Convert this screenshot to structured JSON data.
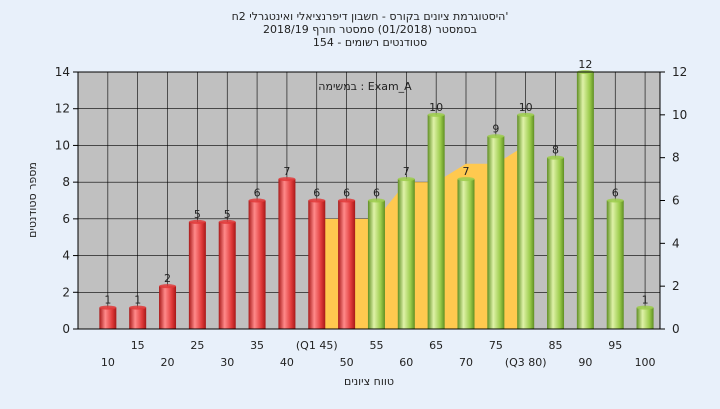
{
  "chart_data": {
    "type": "bar",
    "title_lines": [
      "היסטוגרמת ציונים בקורס - חשבון דיפרנציאלי ואינטגרלי 2ח'",
      "בסמסטר  (01/2018)  סמסטר חורף 2018/19",
      "סטודנטים רשומים - 154"
    ],
    "annotation": "במשימה : Exam_A",
    "xlabel": "טווח ציונים",
    "ylabel": "מספר סטודנטים",
    "ylim_left": [
      0,
      14
    ],
    "ylim_right": [
      0,
      12
    ],
    "yticks_left": [
      0,
      2,
      4,
      6,
      8,
      10,
      12,
      14
    ],
    "yticks_right": [
      0,
      2,
      4,
      6,
      8,
      10,
      12
    ],
    "grid": true,
    "categories": [
      "10",
      "15",
      "20",
      "25",
      "30",
      "35",
      "40",
      "(Q1 45)",
      "50",
      "55",
      "60",
      "65",
      "70",
      "75",
      "(Q3 80)",
      "85",
      "90",
      "95",
      "100"
    ],
    "values": [
      1,
      1,
      2,
      5,
      5,
      6,
      7,
      6,
      6,
      6,
      7,
      10,
      7,
      9,
      10,
      8,
      12,
      6,
      1
    ],
    "bar_colors": [
      "#e03a3a",
      "#e03a3a",
      "#e03a3a",
      "#e03a3a",
      "#e03a3a",
      "#e03a3a",
      "#e03a3a",
      "#e03a3a",
      "#e03a3a",
      "#9ccc4c",
      "#9ccc4c",
      "#9ccc4c",
      "#9ccc4c",
      "#9ccc4c",
      "#9ccc4c",
      "#9ccc4c",
      "#9ccc4c",
      "#9ccc4c",
      "#9ccc4c"
    ],
    "background_area": {
      "color": "#ffc94f",
      "from_category": "(Q1 45)",
      "to_category": "(Q3 80)",
      "values_left_axis": [
        6,
        6,
        6,
        8,
        8,
        9,
        9,
        10
      ]
    },
    "colors": {
      "plot_background": "#c0c0c0",
      "page_background": "#e8f0fa",
      "grid": "#000000"
    }
  }
}
